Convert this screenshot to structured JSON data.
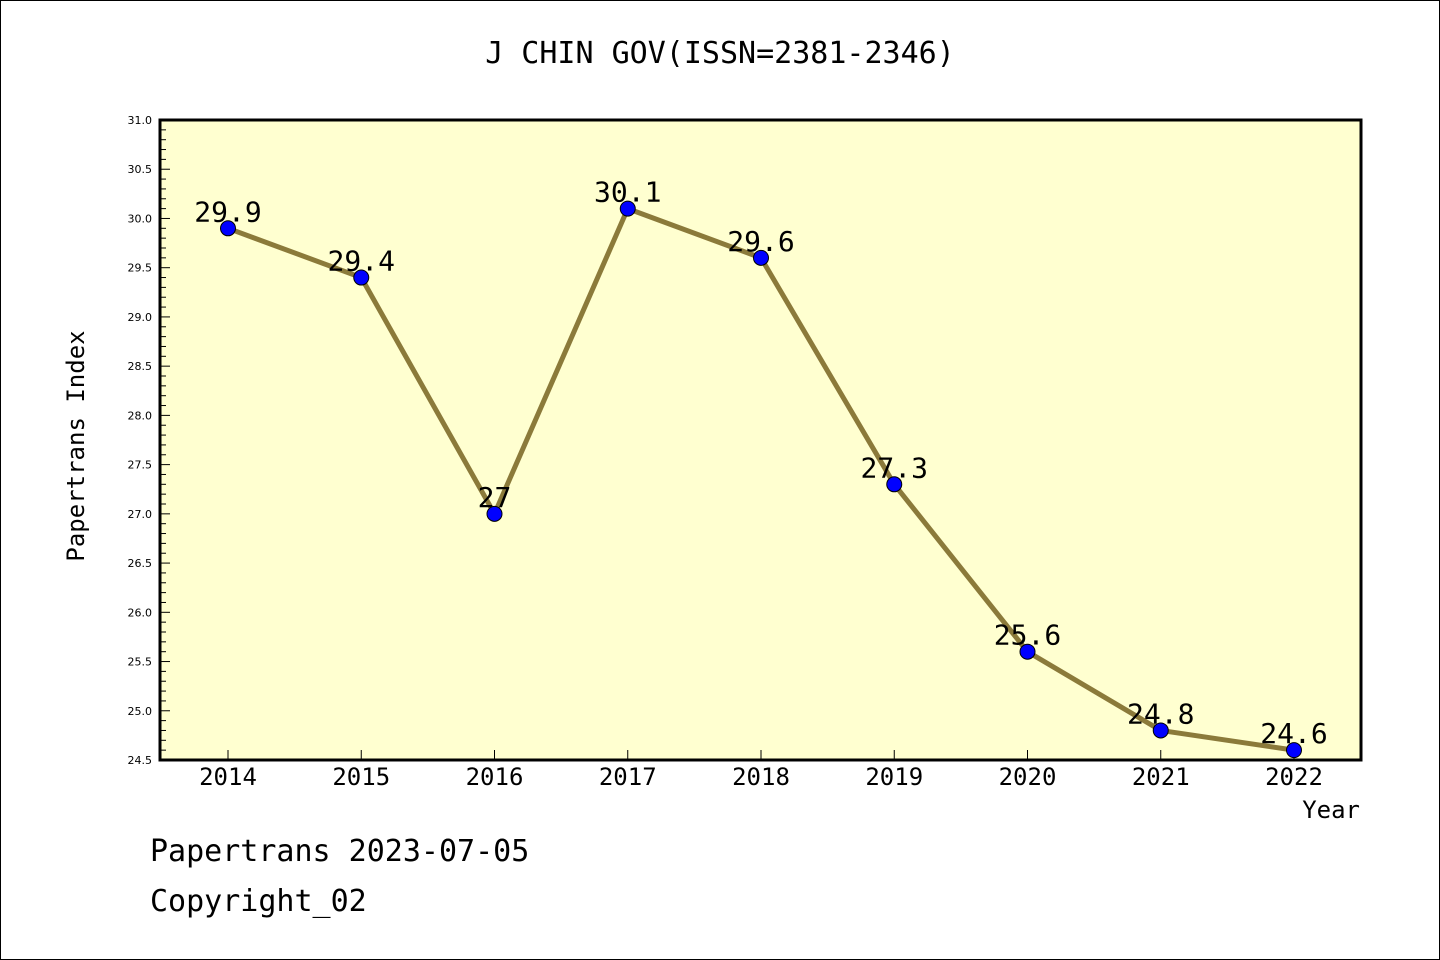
{
  "chart_data": {
    "type": "line",
    "title": "J CHIN GOV(ISSN=2381-2346)",
    "xlabel": "Year",
    "ylabel": "Papertrans Index",
    "categories": [
      "2014",
      "2015",
      "2016",
      "2017",
      "2018",
      "2019",
      "2020",
      "2021",
      "2022"
    ],
    "series": [
      {
        "values": [
          29.9,
          29.4,
          27.0,
          30.1,
          29.6,
          27.3,
          25.6,
          24.8,
          24.6
        ],
        "data_labels": [
          "29.9",
          "29.4",
          "27",
          "30.1",
          "29.6",
          "27.3",
          "25.6",
          "24.8",
          "24.6"
        ]
      }
    ],
    "ylim": [
      24.5,
      31.0
    ],
    "yticks": [
      "24.5",
      "25.0",
      "25.5",
      "26.0",
      "26.5",
      "27.0",
      "27.5",
      "28.0",
      "28.5",
      "29.0",
      "29.5",
      "30.0",
      "30.5",
      "31.0"
    ],
    "grid": false,
    "colors": {
      "plot_background": "#ffffd0",
      "line": "#8b7a3a",
      "marker": "#0000ff"
    }
  },
  "footer": {
    "line1": "Papertrans 2023-07-05",
    "line2": "Copyright_02"
  }
}
